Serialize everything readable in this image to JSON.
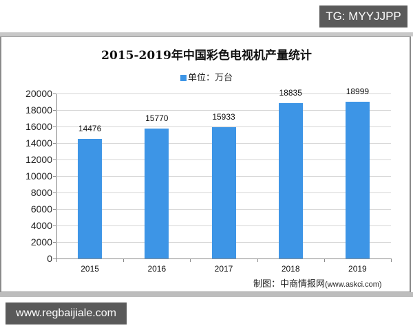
{
  "badges": {
    "tg": "TG: MYYJJPP",
    "site": "www.regbaijiale.com"
  },
  "chart": {
    "title": "2015-2019年中国彩色电视机产量统计",
    "legend_label": "单位：万台",
    "source_prefix": "制图：中商情报网",
    "source_url": "(www.askci.com)",
    "bar_color": "#3d95e6"
  },
  "chart_data": {
    "type": "bar",
    "title": "2015-2019年中国彩色电视机产量统计",
    "categories": [
      "2015",
      "2016",
      "2017",
      "2018",
      "2019"
    ],
    "series": [
      {
        "name": "单位：万台",
        "values": [
          14476,
          15770,
          15933,
          18835,
          18999
        ]
      }
    ],
    "xlabel": "",
    "ylabel": "",
    "ylim": [
      0,
      20000
    ],
    "yticks": [
      "0",
      "2000",
      "4000",
      "6000",
      "8000",
      "10000",
      "12000",
      "14000",
      "16000",
      "18000",
      "20000"
    ],
    "grid": true,
    "legend_position": "top",
    "data_labels": [
      "14476",
      "15770",
      "15933",
      "18835",
      "18999"
    ],
    "annotations": [
      "制图：中商情报网(www.askci.com)"
    ]
  }
}
